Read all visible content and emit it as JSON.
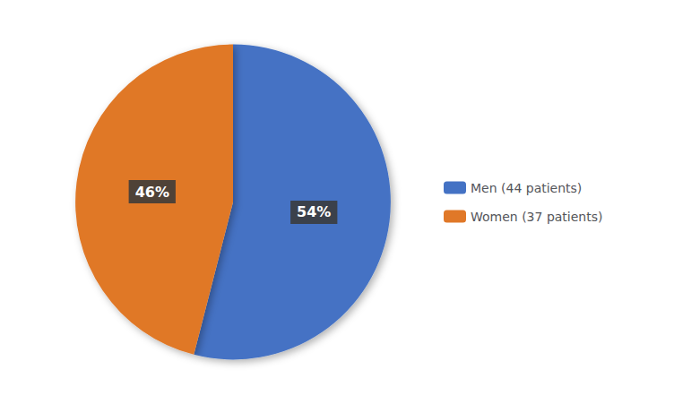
{
  "chart_data": {
    "type": "pie",
    "categories": [
      "Men (44 patients)",
      "Women (37 patients)"
    ],
    "values": [
      54,
      46
    ],
    "value_labels": [
      "54%",
      "46%"
    ],
    "colors": [
      "#4472C4",
      "#E07828"
    ],
    "data_labels": true,
    "legend": "right"
  }
}
